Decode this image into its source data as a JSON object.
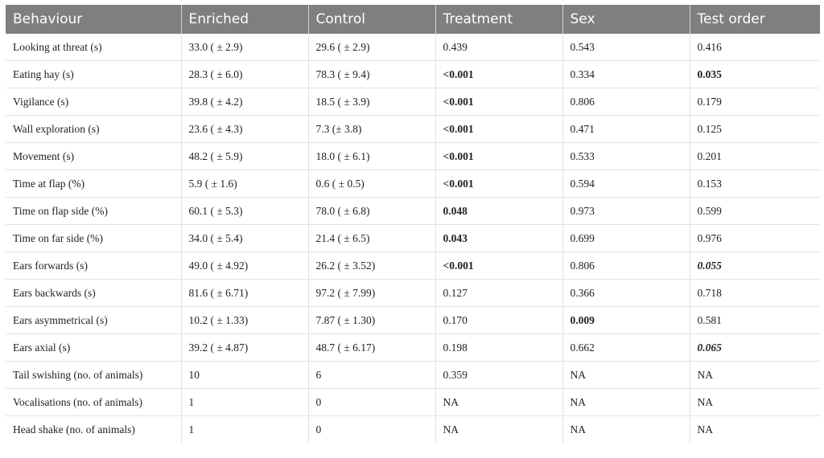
{
  "table": {
    "header": [
      "Behaviour",
      "Enriched",
      "Control",
      "Treatment",
      "Sex",
      "Test order"
    ],
    "rows": [
      [
        "Looking at threat (s)",
        "33.0 ( ± 2.9)",
        "29.6 ( ± 2.9)",
        "0.439",
        "0.543",
        "0.416"
      ],
      [
        "Eating hay (s)",
        "28.3 ( ± 6.0)",
        "78.3 ( ± 9.4)",
        "<0.001",
        "0.334",
        "0.035"
      ],
      [
        "Vigilance (s)",
        "39.8 ( ± 4.2)",
        "18.5 ( ± 3.9)",
        "<0.001",
        "0.806",
        "0.179"
      ],
      [
        "Wall exploration (s)",
        "23.6 ( ± 4.3)",
        "7.3 (± 3.8)",
        "<0.001",
        "0.471",
        "0.125"
      ],
      [
        "Movement (s)",
        "48.2 ( ± 5.9)",
        "18.0 ( ± 6.1)",
        "<0.001",
        "0.533",
        "0.201"
      ],
      [
        "Time at flap (%)",
        "5.9 ( ± 1.6)",
        "0.6 ( ± 0.5)",
        "<0.001",
        "0.594",
        "0.153"
      ],
      [
        "Time on flap side (%)",
        "60.1 ( ± 5.3)",
        "78.0 ( ± 6.8)",
        "0.048",
        "0.973",
        "0.599"
      ],
      [
        "Time on far side (%)",
        "34.0 ( ± 5.4)",
        "21.4 ( ± 6.5)",
        "0.043",
        "0.699",
        "0.976"
      ],
      [
        "Ears forwards (s)",
        "49.0 ( ± 4.92)",
        "26.2 ( ± 3.52)",
        "<0.001",
        "0.806",
        "0.055"
      ],
      [
        "Ears backwards (s)",
        "81.6 ( ± 6.71)",
        "97.2 ( ± 7.99)",
        "0.127",
        "0.366",
        "0.718"
      ],
      [
        "Ears asymmetrical (s)",
        "10.2 ( ± 1.33)",
        "7.87 ( ± 1.30)",
        "0.170",
        "0.009",
        "0.581"
      ],
      [
        "Ears axial (s)",
        "39.2 ( ± 4.87)",
        "48.7 ( ± 6.17)",
        "0.198",
        "0.662",
        "0.065"
      ],
      [
        "Tail swishing (no. of animals)",
        "10",
        "6",
        "0.359",
        "NA",
        "NA"
      ],
      [
        "Vocalisations (no. of animals)",
        "1",
        "0",
        "NA",
        "NA",
        "NA"
      ],
      [
        "Head shake (no. of animals)",
        "1",
        "0",
        "NA",
        "NA",
        "NA"
      ]
    ]
  }
}
